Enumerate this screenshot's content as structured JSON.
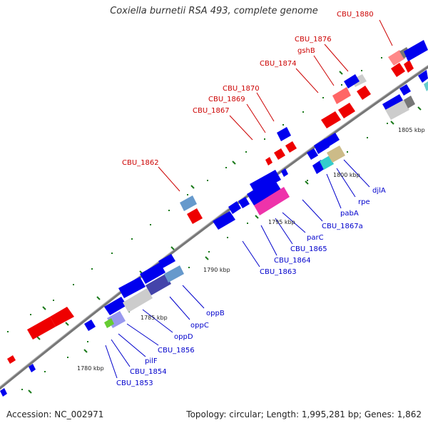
{
  "title": "Coxiella burnetii RSA 493, complete genome",
  "footer": {
    "accession_label": "Accession:",
    "accession_value": "NC_002971",
    "topology_label": "Topology:",
    "topology_value": "circular;",
    "length_label": "Length:",
    "length_value": "1,995,281 bp;",
    "genes_label": "Genes:",
    "genes_value": "1,862"
  },
  "colors": {
    "backbone": "#888888",
    "reverse_label": "#cc0000",
    "forward_label": "#0000cc",
    "tick": "#1a7a1a"
  },
  "scale_ticks": [
    "1780 kbp",
    "1785 kbp",
    "1790 kbp",
    "1795 kbp",
    "1800 kbp",
    "1805 kbp"
  ],
  "reverse_strand_labels": [
    "CBU_1880",
    "CBU_1876",
    "gshB",
    "CBU_1874",
    "CBU_1870",
    "CBU_1869",
    "CBU_1867",
    "CBU_1862"
  ],
  "forward_strand_labels": [
    "djlA",
    "rpe",
    "pabA",
    "CBU_1867a",
    "parC",
    "CBU_1865",
    "CBU_1864",
    "CBU_1863",
    "oppB",
    "oppC",
    "oppD",
    "CBU_1856",
    "pilF",
    "CBU_1854",
    "CBU_1853"
  ]
}
